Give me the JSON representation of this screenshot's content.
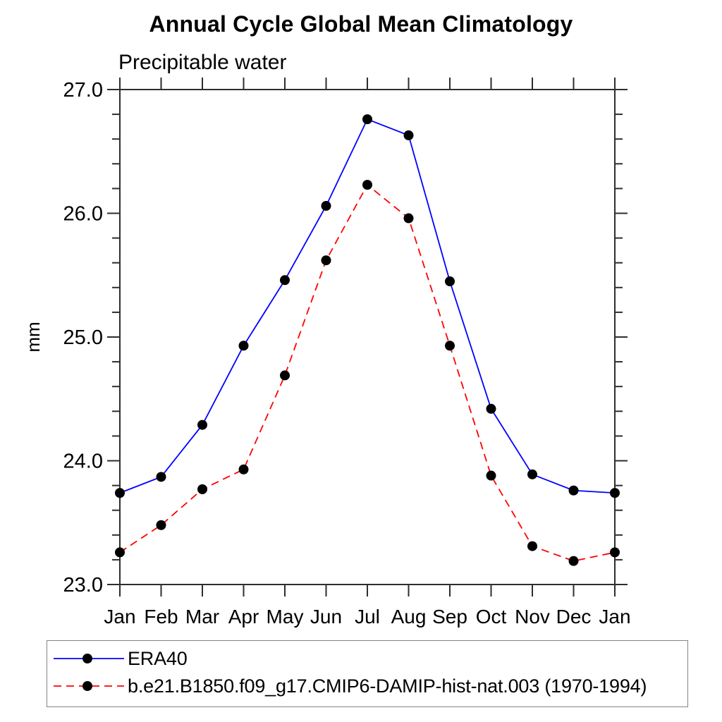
{
  "chart_data": {
    "type": "line",
    "title": "Annual Cycle Global Mean Climatology",
    "subtitle": "Precipitable water",
    "ylabel": "mm",
    "xlabel": "",
    "categories": [
      "Jan",
      "Feb",
      "Mar",
      "Apr",
      "May",
      "Jun",
      "Jul",
      "Aug",
      "Sep",
      "Oct",
      "Nov",
      "Dec",
      "Jan"
    ],
    "ylim": [
      23.0,
      27.0
    ],
    "ytick_labels": [
      "23.0",
      "24.0",
      "25.0",
      "26.0",
      "27.0"
    ],
    "ytick_major_values": [
      23.0,
      24.0,
      25.0,
      26.0,
      27.0
    ],
    "ytick_minor_step": 0.2,
    "grid": false,
    "legend_position": "bottom-left framed box",
    "marker": {
      "shape": "circle",
      "color": "#000000"
    },
    "series": [
      {
        "name": "ERA40",
        "color": "#0000ff",
        "line_style": "solid",
        "values": [
          23.74,
          23.87,
          24.29,
          24.93,
          25.46,
          26.06,
          26.76,
          26.63,
          25.45,
          24.42,
          23.89,
          23.76,
          23.74
        ]
      },
      {
        "name": "b.e21.B1850.f09_g17.CMIP6-DAMIP-hist-nat.003 (1970-1994)",
        "color": "#ff0000",
        "line_style": "dashed",
        "values": [
          23.26,
          23.48,
          23.77,
          23.93,
          24.69,
          25.62,
          26.23,
          25.96,
          24.93,
          23.88,
          23.31,
          23.19,
          23.26
        ]
      }
    ]
  },
  "colors": {
    "axis": "#2e2e2e",
    "text": "#000000",
    "legend_border": "#848484",
    "background": "#ffffff"
  }
}
